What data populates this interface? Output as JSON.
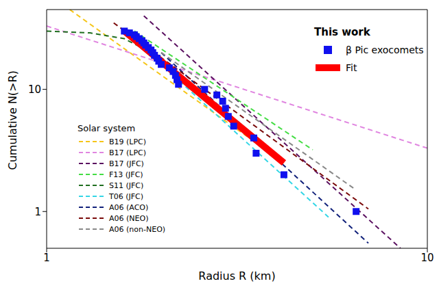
{
  "chart_data": {
    "type": "line",
    "log": true,
    "x_label": "Radius R (km)",
    "y_label": "Cumulative N(>R)",
    "xlim": [
      1,
      10
    ],
    "ylim": [
      0.5,
      45
    ],
    "xticks": [
      1,
      10
    ],
    "yticks": [
      1,
      10
    ],
    "legends": [
      {
        "title": "This work",
        "series": [
          "β Pic exocomets",
          "Fit"
        ]
      },
      {
        "title": "Solar system",
        "series": [
          "B19 (LPC)",
          "B17 (LPC)",
          "B17 (JFC)",
          "F13 (JFC)",
          "S11 (JFC)",
          "T06 (JFC)",
          "A06 (ACO)",
          "A06 (NEO)",
          "A06 (non-NEO)"
        ]
      }
    ],
    "series": [
      {
        "name": "B19 (LPC)",
        "type": "line",
        "color": "#f5c518",
        "line_style": "dashed",
        "x": [
          1.15,
          4.2
        ],
        "values": [
          45,
          2.5
        ]
      },
      {
        "name": "B17 (LPC)",
        "type": "line",
        "color": "#e085e0",
        "line_style": "dashed",
        "x": [
          1.0,
          10.0
        ],
        "values": [
          33,
          3.3
        ]
      },
      {
        "name": "B17 (JFC)",
        "type": "line",
        "color": "#5a1060",
        "line_style": "dashed",
        "x": [
          1.8,
          8.5
        ],
        "values": [
          40,
          0.5
        ]
      },
      {
        "name": "F13 (JFC)",
        "type": "line",
        "color": "#44dd44",
        "line_style": "dashed",
        "x": [
          1.7,
          5.0
        ],
        "values": [
          30,
          3.2
        ]
      },
      {
        "name": "S11 (JFC)",
        "type": "line",
        "color": "#1f6e1f",
        "line_style": "dashed",
        "x": [
          1.0,
          1.3,
          1.6,
          2.0
        ],
        "values": [
          30,
          29,
          26,
          18
        ]
      },
      {
        "name": "T06 (JFC)",
        "type": "line",
        "color": "#33d6e6",
        "line_style": "dashed",
        "x": [
          2.0,
          5.5
        ],
        "values": [
          16,
          0.9
        ]
      },
      {
        "name": "A06 (ACO)",
        "type": "line",
        "color": "#10207a",
        "line_style": "dashed",
        "x": [
          2.0,
          7.0
        ],
        "values": [
          20,
          0.55
        ]
      },
      {
        "name": "A06 (NEO)",
        "type": "line",
        "color": "#7a0a0a",
        "line_style": "dashed",
        "x": [
          1.5,
          7.0
        ],
        "values": [
          35,
          1.05
        ]
      },
      {
        "name": "A06 (non-NEO)",
        "type": "line",
        "color": "#888888",
        "line_style": "dashed",
        "x": [
          2.0,
          6.5
        ],
        "values": [
          20,
          1.5
        ]
      },
      {
        "name": "Fit",
        "type": "line",
        "color": "#ff0000",
        "line_style": "solid",
        "x": [
          1.6,
          4.2
        ],
        "values": [
          30,
          2.5
        ]
      },
      {
        "name": "β Pic exocomets",
        "type": "scatter",
        "color": "#1010ee",
        "marker": "square",
        "x": [
          1.6,
          1.65,
          1.7,
          1.72,
          1.75,
          1.78,
          1.8,
          1.82,
          1.85,
          1.88,
          1.9,
          1.92,
          1.95,
          1.97,
          2.0,
          2.1,
          2.15,
          2.18,
          2.2,
          2.22,
          2.6,
          2.8,
          2.9,
          2.95,
          3.0,
          3.1,
          3.5,
          3.55,
          4.2,
          6.5
        ],
        "values": [
          30,
          29,
          28,
          27,
          26,
          25,
          24,
          23,
          22,
          21,
          20,
          19,
          18,
          17,
          16,
          15,
          14,
          13,
          12,
          11,
          10,
          9,
          8,
          7,
          6,
          5,
          4,
          3,
          2,
          1
        ]
      }
    ]
  }
}
